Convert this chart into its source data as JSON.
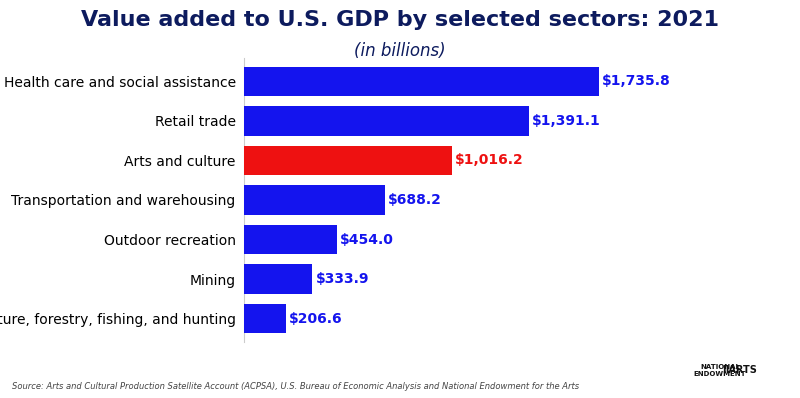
{
  "title": "Value added to U.S. GDP by selected sectors: 2021",
  "subtitle": "(in billions)",
  "categories": [
    "Health care and social assistance",
    "Retail trade",
    "Arts and culture",
    "Transportation and warehousing",
    "Outdoor recreation",
    "Mining",
    "Agriculture, forestry, fishing, and hunting"
  ],
  "values": [
    1735.8,
    1391.1,
    1016.2,
    688.2,
    454.0,
    333.9,
    206.6
  ],
  "bar_colors": [
    "#1414ee",
    "#1414ee",
    "#ee1111",
    "#1414ee",
    "#1414ee",
    "#1414ee",
    "#1414ee"
  ],
  "value_labels": [
    "$1,735.8",
    "$1,391.1",
    "$1,016.2",
    "$688.2",
    "$454.0",
    "$333.9",
    "$206.6"
  ],
  "value_label_colors": [
    "#1414ee",
    "#1414ee",
    "#ee1111",
    "#1414ee",
    "#1414ee",
    "#1414ee",
    "#1414ee"
  ],
  "title_color": "#0d1b5e",
  "subtitle_color": "#0d1b5e",
  "source_text": "Source: Arts and Cultural Production Satellite Account (ACPSA), U.S. Bureau of Economic Analysis and National Endowment for the Arts",
  "xlim": [
    0,
    2150
  ],
  "background_color": "#ffffff",
  "bar_height": 0.75,
  "title_fontsize": 16,
  "subtitle_fontsize": 12,
  "tick_label_fontsize": 10,
  "value_fontsize": 10
}
